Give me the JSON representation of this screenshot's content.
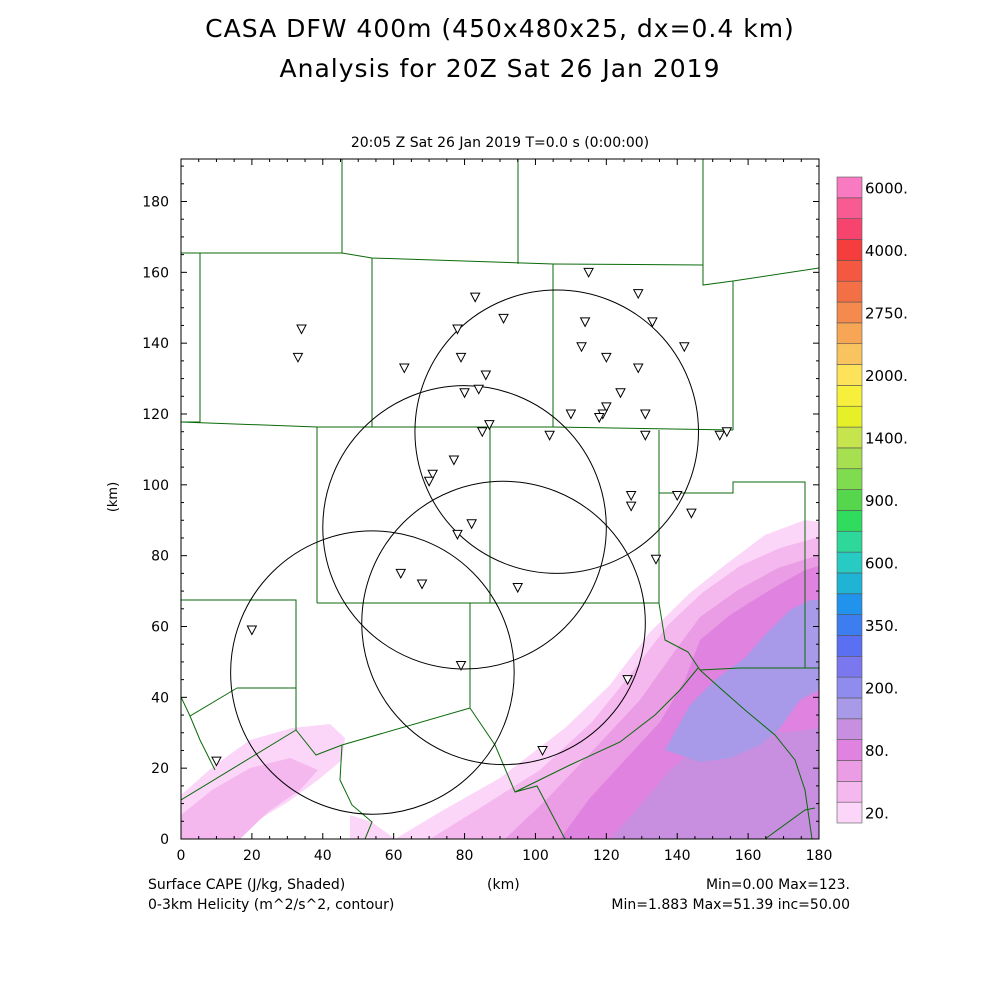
{
  "title": {
    "line1": "CASA DFW 400m (450x480x25, dx=0.4 km)",
    "line2": "Analysis for 20Z Sat 26 Jan 2019"
  },
  "subtitle": "20:05 Z Sat 26 Jan 2019    T=0.0 s (0:00:00)",
  "axes": {
    "x_label": "(km)",
    "y_label": "(km)",
    "x_ticks": [
      "0",
      "20",
      "40",
      "60",
      "80",
      "100",
      "120",
      "140",
      "160",
      "180"
    ],
    "y_ticks": [
      "0",
      "20",
      "40",
      "60",
      "80",
      "100",
      "120",
      "140",
      "160",
      "180"
    ],
    "x_range": [
      0,
      180
    ],
    "y_range": [
      0,
      192
    ]
  },
  "colorbar": {
    "labels": [
      "20.",
      "80.",
      "200.",
      "350.",
      "600.",
      "900.",
      "1400.",
      "2000.",
      "2750.",
      "4000.",
      "6000."
    ],
    "colors": [
      "#fbd6f8",
      "#f4b8ef",
      "#ea9ce4",
      "#e082df",
      "#c88fe0",
      "#a89ae8",
      "#8f8cee",
      "#7b77ee",
      "#5a6ff2",
      "#3c7df0",
      "#2293ec",
      "#1fb3d6",
      "#28cbc4",
      "#2ed89a",
      "#2fdc5e",
      "#55d64c",
      "#7fdc4e",
      "#a6e050",
      "#c6e44e",
      "#e6f028",
      "#f6f03c",
      "#fde25a",
      "#f9c460",
      "#f7a655",
      "#f48a4e",
      "#f37046",
      "#f45840",
      "#f63d3d",
      "#f6446e",
      "#f85a92",
      "#f87ac0"
    ]
  },
  "footer": {
    "left1": "Surface CAPE (J/kg, Shaded)",
    "left2": "0-3km Helicity (m^2/s^2, contour)",
    "center": "(km)",
    "right1": "Min=0.00 Max=123.",
    "right2": "Min=1.883 Max=51.39 inc=50.00"
  },
  "map_data": {
    "fields": {
      "shaded": "Surface CAPE",
      "contour": "0-3km Helicity",
      "cape_min": 0.0,
      "cape_max": 123.0,
      "helicity_min": 1.883,
      "helicity_max": 51.39,
      "contour_interval": 50.0
    },
    "radar_circles_km": [
      {
        "cx": 106,
        "cy": 115,
        "r": 40
      },
      {
        "cx": 80,
        "cy": 88,
        "r": 40
      },
      {
        "cx": 91,
        "cy": 61,
        "r": 40
      },
      {
        "cx": 54,
        "cy": 47,
        "r": 40
      }
    ],
    "stations_km": [
      [
        115,
        160
      ],
      [
        83,
        153
      ],
      [
        129,
        154
      ],
      [
        91,
        147
      ],
      [
        34,
        144
      ],
      [
        114,
        146
      ],
      [
        133,
        146
      ],
      [
        78,
        144
      ],
      [
        142,
        139
      ],
      [
        33,
        136
      ],
      [
        113,
        139
      ],
      [
        79,
        136
      ],
      [
        120,
        136
      ],
      [
        63,
        133
      ],
      [
        129,
        133
      ],
      [
        86,
        131
      ],
      [
        84,
        127
      ],
      [
        80,
        126
      ],
      [
        124,
        126
      ],
      [
        120,
        122
      ],
      [
        119,
        120
      ],
      [
        110,
        120
      ],
      [
        131,
        120
      ],
      [
        118,
        119
      ],
      [
        87,
        117
      ],
      [
        85,
        115
      ],
      [
        104,
        114
      ],
      [
        131,
        114
      ],
      [
        152,
        114
      ],
      [
        154,
        115
      ],
      [
        77,
        107
      ],
      [
        71,
        103
      ],
      [
        70,
        101
      ],
      [
        127,
        97
      ],
      [
        140,
        97
      ],
      [
        127,
        94
      ],
      [
        144,
        92
      ],
      [
        82,
        89
      ],
      [
        78,
        86
      ],
      [
        134,
        79
      ],
      [
        62,
        75
      ],
      [
        68,
        72
      ],
      [
        95,
        71
      ],
      [
        20,
        59
      ],
      [
        79,
        49
      ],
      [
        126,
        45
      ],
      [
        102,
        25
      ],
      [
        10,
        22
      ]
    ]
  }
}
